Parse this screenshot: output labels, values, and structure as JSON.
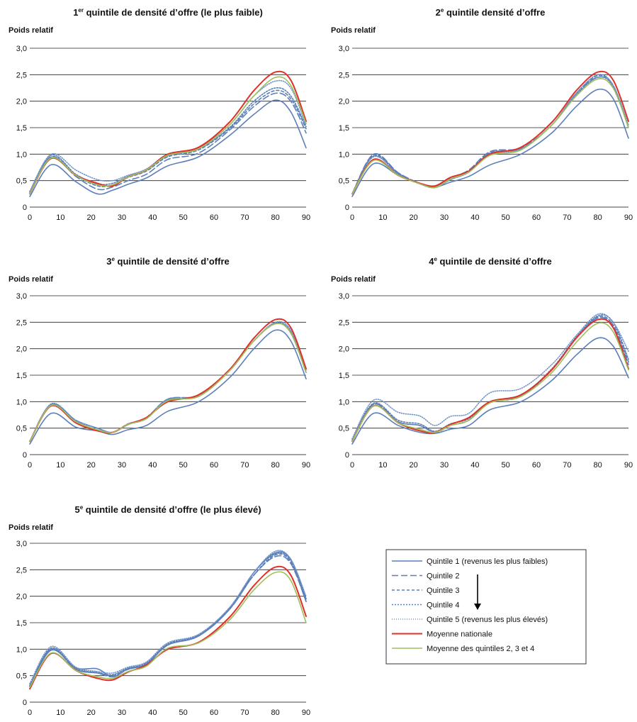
{
  "chart_data": [
    {
      "type": "line",
      "title_parts": [
        "1",
        "er",
        " quintile de densité d’offre (le plus faible)"
      ],
      "ylabel": "Poids relatif",
      "xlim": [
        0,
        90
      ],
      "ylim": [
        0,
        3
      ],
      "xticks": [
        "0",
        "10",
        "20",
        "30",
        "40",
        "50",
        "60",
        "70",
        "80",
        "90"
      ],
      "yticks": [
        "0",
        "0,5",
        "1,0",
        "1,5",
        "2,0",
        "2,5",
        "3,0"
      ],
      "x": [
        0,
        7,
        15,
        22,
        27,
        32,
        38,
        45,
        55,
        65,
        73,
        80,
        85,
        90
      ],
      "series": [
        {
          "key": "q1",
          "values": [
            0.2,
            0.8,
            0.48,
            0.25,
            0.32,
            0.43,
            0.55,
            0.78,
            0.95,
            1.35,
            1.75,
            2.02,
            1.8,
            1.12
          ]
        },
        {
          "key": "q2",
          "values": [
            0.25,
            0.95,
            0.58,
            0.34,
            0.38,
            0.5,
            0.62,
            0.9,
            1.02,
            1.45,
            1.9,
            2.15,
            2.0,
            1.4
          ]
        },
        {
          "key": "q3",
          "values": [
            0.25,
            0.95,
            0.6,
            0.4,
            0.42,
            0.56,
            0.68,
            0.95,
            1.08,
            1.48,
            1.95,
            2.2,
            2.05,
            1.48
          ]
        },
        {
          "key": "q4",
          "values": [
            0.28,
            0.98,
            0.62,
            0.44,
            0.45,
            0.58,
            0.7,
            0.97,
            1.1,
            1.5,
            2.0,
            2.25,
            2.1,
            1.52
          ]
        },
        {
          "key": "q5",
          "values": [
            0.3,
            1.0,
            0.7,
            0.52,
            0.5,
            0.6,
            0.72,
            1.0,
            1.12,
            1.55,
            2.1,
            2.38,
            2.25,
            1.55
          ]
        },
        {
          "key": "nat",
          "values": [
            0.25,
            0.92,
            0.6,
            0.45,
            0.4,
            0.57,
            0.7,
            1.0,
            1.13,
            1.6,
            2.2,
            2.55,
            2.4,
            1.62
          ]
        },
        {
          "key": "avg",
          "values": [
            0.25,
            0.93,
            0.6,
            0.42,
            0.42,
            0.57,
            0.7,
            0.98,
            1.1,
            1.55,
            2.1,
            2.45,
            2.3,
            1.58
          ]
        }
      ]
    },
    {
      "type": "line",
      "title_parts": [
        "2",
        "e",
        " quintile densité d’offre"
      ],
      "ylabel": "Poids relatif",
      "xlim": [
        0,
        90
      ],
      "ylim": [
        0,
        3
      ],
      "xticks": [
        "0",
        "10",
        "20",
        "30",
        "40",
        "50",
        "60",
        "70",
        "80",
        "90"
      ],
      "yticks": [
        "0",
        "0,5",
        "1,0",
        "1,5",
        "2,0",
        "2,5",
        "3,0"
      ],
      "x": [
        0,
        7,
        15,
        22,
        27,
        32,
        38,
        45,
        55,
        65,
        73,
        80,
        85,
        90
      ],
      "series": [
        {
          "key": "q1",
          "values": [
            0.2,
            0.82,
            0.6,
            0.45,
            0.38,
            0.47,
            0.58,
            0.8,
            1.0,
            1.4,
            1.9,
            2.22,
            2.05,
            1.3
          ]
        },
        {
          "key": "q2",
          "values": [
            0.25,
            1.0,
            0.65,
            0.45,
            0.38,
            0.55,
            0.7,
            1.05,
            1.12,
            1.55,
            2.15,
            2.45,
            2.3,
            1.5
          ]
        },
        {
          "key": "q3",
          "values": [
            0.25,
            0.98,
            0.64,
            0.44,
            0.37,
            0.52,
            0.68,
            1.03,
            1.1,
            1.55,
            2.15,
            2.48,
            2.3,
            1.5
          ]
        },
        {
          "key": "q4",
          "values": [
            0.25,
            0.96,
            0.63,
            0.44,
            0.37,
            0.52,
            0.66,
            1.02,
            1.1,
            1.55,
            2.12,
            2.45,
            2.28,
            1.5
          ]
        },
        {
          "key": "q5",
          "values": [
            0.25,
            0.95,
            0.62,
            0.44,
            0.37,
            0.52,
            0.66,
            1.0,
            1.1,
            1.55,
            2.15,
            2.5,
            2.3,
            1.55
          ]
        },
        {
          "key": "nat",
          "values": [
            0.25,
            0.9,
            0.6,
            0.45,
            0.4,
            0.56,
            0.68,
            1.0,
            1.13,
            1.6,
            2.2,
            2.55,
            2.4,
            1.62
          ]
        },
        {
          "key": "avg",
          "values": [
            0.25,
            0.88,
            0.6,
            0.44,
            0.37,
            0.53,
            0.66,
            0.98,
            1.08,
            1.55,
            2.1,
            2.42,
            2.25,
            1.5
          ]
        }
      ]
    },
    {
      "type": "line",
      "title_parts": [
        "3",
        "e",
        " quintile de densité d’offre"
      ],
      "ylabel": "Poids relatif",
      "xlim": [
        0,
        90
      ],
      "ylim": [
        0,
        3
      ],
      "xticks": [
        "0",
        "10",
        "20",
        "30",
        "40",
        "50",
        "60",
        "70",
        "80",
        "90"
      ],
      "yticks": [
        "0",
        "0,5",
        "1,0",
        "1,5",
        "2,0",
        "2,5",
        "3,0"
      ],
      "x": [
        0,
        7,
        15,
        22,
        27,
        32,
        38,
        45,
        55,
        65,
        73,
        80,
        85,
        90
      ],
      "series": [
        {
          "key": "q1",
          "values": [
            0.2,
            0.78,
            0.52,
            0.45,
            0.38,
            0.47,
            0.55,
            0.82,
            1.0,
            1.45,
            2.0,
            2.35,
            2.15,
            1.43
          ]
        },
        {
          "key": "q2",
          "values": [
            0.25,
            0.95,
            0.65,
            0.5,
            0.42,
            0.58,
            0.7,
            1.05,
            1.12,
            1.6,
            2.15,
            2.48,
            2.3,
            1.55
          ]
        },
        {
          "key": "q3",
          "values": [
            0.25,
            0.95,
            0.65,
            0.5,
            0.42,
            0.58,
            0.68,
            1.04,
            1.1,
            1.58,
            2.15,
            2.47,
            2.3,
            1.55
          ]
        },
        {
          "key": "q4",
          "values": [
            0.25,
            0.95,
            0.64,
            0.5,
            0.42,
            0.57,
            0.68,
            1.03,
            1.1,
            1.58,
            2.15,
            2.48,
            2.32,
            1.55
          ]
        },
        {
          "key": "q5",
          "values": [
            0.25,
            0.96,
            0.65,
            0.5,
            0.42,
            0.58,
            0.7,
            1.05,
            1.12,
            1.6,
            2.15,
            2.5,
            2.35,
            1.58
          ]
        },
        {
          "key": "nat",
          "values": [
            0.25,
            0.92,
            0.6,
            0.45,
            0.42,
            0.57,
            0.7,
            1.0,
            1.13,
            1.6,
            2.2,
            2.55,
            2.4,
            1.62
          ]
        },
        {
          "key": "avg",
          "values": [
            0.25,
            0.93,
            0.62,
            0.47,
            0.42,
            0.57,
            0.68,
            1.02,
            1.1,
            1.58,
            2.15,
            2.47,
            2.3,
            1.55
          ]
        }
      ]
    },
    {
      "type": "line",
      "title_parts": [
        "4",
        "e",
        " quintile de densité d’offre"
      ],
      "ylabel": "Poids relatif",
      "xlim": [
        0,
        90
      ],
      "ylim": [
        0,
        3
      ],
      "xticks": [
        "0",
        "10",
        "20",
        "30",
        "40",
        "50",
        "60",
        "70",
        "80",
        "90"
      ],
      "yticks": [
        "0",
        "0,5",
        "1,0",
        "1,5",
        "2,0",
        "2,5",
        "3,0"
      ],
      "x": [
        0,
        7,
        15,
        22,
        27,
        32,
        38,
        45,
        55,
        65,
        73,
        80,
        85,
        90
      ],
      "series": [
        {
          "key": "q1",
          "values": [
            0.2,
            0.78,
            0.55,
            0.42,
            0.4,
            0.48,
            0.55,
            0.85,
            1.0,
            1.4,
            1.88,
            2.2,
            2.05,
            1.45
          ]
        },
        {
          "key": "q2",
          "values": [
            0.25,
            0.95,
            0.62,
            0.55,
            0.42,
            0.55,
            0.65,
            1.0,
            1.12,
            1.6,
            2.2,
            2.58,
            2.42,
            1.7
          ]
        },
        {
          "key": "q3",
          "values": [
            0.25,
            0.95,
            0.62,
            0.55,
            0.42,
            0.55,
            0.65,
            0.98,
            1.1,
            1.6,
            2.2,
            2.6,
            2.45,
            1.75
          ]
        },
        {
          "key": "q4",
          "values": [
            0.28,
            0.97,
            0.65,
            0.58,
            0.44,
            0.58,
            0.68,
            1.0,
            1.12,
            1.62,
            2.22,
            2.62,
            2.5,
            1.8
          ]
        },
        {
          "key": "q5",
          "values": [
            0.3,
            1.03,
            0.8,
            0.73,
            0.55,
            0.72,
            0.78,
            1.17,
            1.25,
            1.7,
            2.25,
            2.65,
            2.5,
            1.95
          ]
        },
        {
          "key": "nat",
          "values": [
            0.25,
            0.92,
            0.6,
            0.45,
            0.42,
            0.57,
            0.7,
            1.0,
            1.13,
            1.6,
            2.2,
            2.55,
            2.4,
            1.62
          ]
        },
        {
          "key": "avg",
          "values": [
            0.25,
            0.92,
            0.6,
            0.48,
            0.42,
            0.55,
            0.65,
            0.98,
            1.1,
            1.55,
            2.12,
            2.48,
            2.32,
            1.6
          ]
        }
      ]
    },
    {
      "type": "line",
      "title_parts": [
        "5",
        "e",
        " quintile de densité d’offre (le plus élevé)"
      ],
      "ylabel": "Poids relatif",
      "xlim": [
        0,
        90
      ],
      "ylim": [
        0,
        3
      ],
      "xticks": [
        "0",
        "10",
        "20",
        "30",
        "40",
        "50",
        "60",
        "70",
        "80",
        "90"
      ],
      "yticks": [
        "0",
        "0,5",
        "1,0",
        "1,5",
        "2,0",
        "2,5",
        "3,0"
      ],
      "x": [
        0,
        7,
        15,
        22,
        27,
        32,
        38,
        45,
        55,
        65,
        73,
        80,
        85,
        90
      ],
      "series": [
        {
          "key": "q1",
          "values": [
            0.3,
            0.98,
            0.65,
            0.63,
            0.48,
            0.63,
            0.72,
            1.08,
            1.25,
            1.75,
            2.45,
            2.82,
            2.7,
            1.95
          ]
        },
        {
          "key": "q2",
          "values": [
            0.3,
            1.0,
            0.62,
            0.55,
            0.48,
            0.62,
            0.72,
            1.08,
            1.25,
            1.75,
            2.4,
            2.75,
            2.62,
            1.9
          ]
        },
        {
          "key": "q3",
          "values": [
            0.3,
            1.0,
            0.62,
            0.55,
            0.5,
            0.62,
            0.72,
            1.08,
            1.25,
            1.75,
            2.4,
            2.78,
            2.65,
            1.9
          ]
        },
        {
          "key": "q4",
          "values": [
            0.32,
            1.02,
            0.64,
            0.56,
            0.52,
            0.64,
            0.74,
            1.1,
            1.27,
            1.78,
            2.45,
            2.8,
            2.68,
            1.95
          ]
        },
        {
          "key": "q5",
          "values": [
            0.35,
            1.05,
            0.66,
            0.58,
            0.55,
            0.66,
            0.76,
            1.12,
            1.28,
            1.78,
            2.45,
            2.85,
            2.7,
            2.0
          ]
        },
        {
          "key": "nat",
          "values": [
            0.25,
            0.92,
            0.6,
            0.45,
            0.42,
            0.57,
            0.7,
            1.0,
            1.13,
            1.6,
            2.2,
            2.55,
            2.4,
            1.62
          ]
        },
        {
          "key": "avg",
          "values": [
            0.28,
            0.93,
            0.6,
            0.48,
            0.45,
            0.58,
            0.68,
            1.02,
            1.12,
            1.55,
            2.12,
            2.45,
            2.3,
            1.5
          ]
        }
      ]
    }
  ],
  "legend": {
    "items": [
      {
        "key": "q1",
        "label": "Quintile 1 (revenus les plus faibles)"
      },
      {
        "key": "q2",
        "label": "Quintile 2"
      },
      {
        "key": "q3",
        "label": "Quintile 3"
      },
      {
        "key": "q4",
        "label": "Quintile 4"
      },
      {
        "key": "q5",
        "label": "Quintile 5 (revenus les plus élevés)"
      },
      {
        "key": "nat",
        "label": "Moyenne nationale"
      },
      {
        "key": "avg",
        "label": "Moyenne des quintiles 2, 3 et 4"
      }
    ]
  },
  "styles": {
    "q1": {
      "color": "#5b7fb8",
      "dash": "none"
    },
    "q2": {
      "color": "#5b7fb8",
      "dash": "9,4"
    },
    "q3": {
      "color": "#5b7fb8",
      "dash": "4,3"
    },
    "q4": {
      "color": "#5b7fb8",
      "dash": "2,2"
    },
    "q5": {
      "color": "#6e92c8",
      "dash": "1,2"
    },
    "nat": {
      "color": "#e0302a",
      "dash": "none"
    },
    "avg": {
      "color": "#9fbf5c",
      "dash": "none"
    }
  }
}
